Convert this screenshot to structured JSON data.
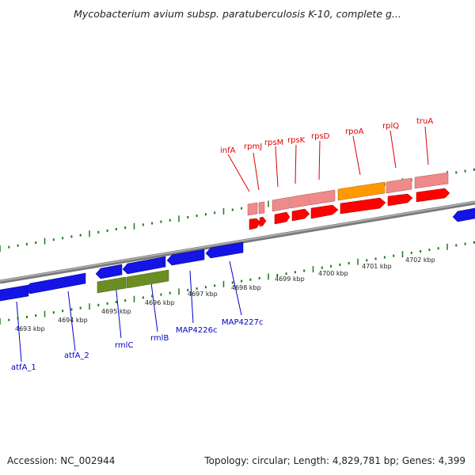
{
  "header": {
    "title": "Mycobacterium avium subsp. paratuberculosis K-10, complete g..."
  },
  "footer": {
    "accession": "Accession: NC_002944",
    "summary": "Topology: circular; Length: 4,829,781 bp; Genes: 4,399"
  },
  "colors": {
    "backbone": "#8a8a8a",
    "tick": "#1a7a1a",
    "forward_gene": "#ff0000",
    "forward_gene_light": "#f08a8a",
    "highlight_gene": "#ff9900",
    "reverse_gene": "#1414e6",
    "green_gene": "#6b8e23",
    "label_red": "#e00000",
    "label_blue": "#0000cc"
  },
  "scale_labels": [
    "4693 kbp",
    "4694 kbp",
    "4695 kbp",
    "4696 kbp",
    "4697 kbp",
    "4698 kbp",
    "4699 kbp",
    "4700 kbp",
    "4701 kbp",
    "4702 kbp"
  ],
  "top_gene_labels": [
    "infA",
    "rpmJ",
    "rpsM",
    "rpsK",
    "rpsD",
    "rpoA",
    "rplQ",
    "truA"
  ],
  "bottom_gene_labels": [
    "atfA_1",
    "atfA_2",
    "rmlC",
    "rmlB",
    "MAP4226c",
    "MAP4227c"
  ]
}
